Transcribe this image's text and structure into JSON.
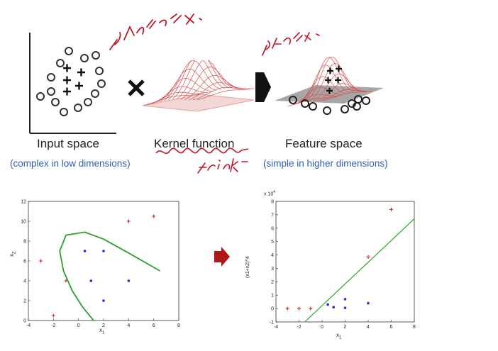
{
  "top": {
    "input_label": "Input space",
    "kernel_label": "Kernel function",
    "feature_label": "Feature space",
    "input_note": "(complex in low dimensions)",
    "feature_note": "(simple in higher dimensions)",
    "handwritten_trick": "trick",
    "handwritten_left": "선형없는 X",
    "handwritten_right": "차원확산"
  },
  "charts": {
    "left": {
      "xlabel": "x",
      "xlabel_sub": "1",
      "ylabel": "x",
      "ylabel_sub": "2",
      "xticks": [
        "-4",
        "-2",
        "0",
        "2",
        "4",
        "6",
        "8"
      ],
      "yticks": [
        "0",
        "2",
        "4",
        "6",
        "8",
        "10",
        "12"
      ]
    },
    "right": {
      "xlabel": "x",
      "xlabel_sub": "1",
      "ylabel": "(x1+x2)^4",
      "exp_label": "x 10",
      "exp_sup": "4",
      "xticks": [
        "-4",
        "-2",
        "0",
        "2",
        "4",
        "6",
        "8"
      ],
      "yticks": [
        "-1",
        "0",
        "1",
        "2",
        "3",
        "4",
        "5",
        "6",
        "7",
        "8"
      ]
    }
  },
  "chart_data": [
    {
      "type": "scatter",
      "xlim": [
        -4,
        8
      ],
      "ylim": [
        0,
        12
      ],
      "series": [
        {
          "marker": "plus",
          "color": "#d62020",
          "points": [
            [
              -3,
              6
            ],
            [
              -2,
              0.5
            ],
            [
              -1,
              4
            ],
            [
              4,
              10
            ],
            [
              6,
              10.5
            ]
          ]
        },
        {
          "marker": "dot",
          "color": "#1c2fd0",
          "points": [
            [
              0.5,
              7
            ],
            [
              1,
              4
            ],
            [
              2,
              7
            ],
            [
              2,
              2
            ],
            [
              4,
              4
            ]
          ]
        }
      ],
      "boundary_color": "#2ca02c"
    },
    {
      "type": "scatter",
      "xlim": [
        -4,
        8
      ],
      "ylim": [
        -1,
        8
      ],
      "scale_exponent": 4,
      "series": [
        {
          "marker": "plus",
          "color": "#d62020",
          "points": [
            [
              -3,
              0
            ],
            [
              -2,
              0
            ],
            [
              -1,
              0
            ],
            [
              4,
              3.85
            ],
            [
              6,
              7.4
            ]
          ]
        },
        {
          "marker": "dot",
          "color": "#1c2fd0",
          "points": [
            [
              0.5,
              0.3
            ],
            [
              1,
              0.1
            ],
            [
              2,
              0.05
            ],
            [
              2,
              0.7
            ],
            [
              4,
              0.4
            ]
          ]
        }
      ],
      "line": {
        "color": "#2ca02c",
        "x": [
          -1.5,
          8
        ],
        "y": [
          -1,
          6.7
        ]
      }
    }
  ],
  "colors": {
    "arrow": "#b01818",
    "note": "#2f5fb3",
    "handwriting": "#c0182a"
  }
}
